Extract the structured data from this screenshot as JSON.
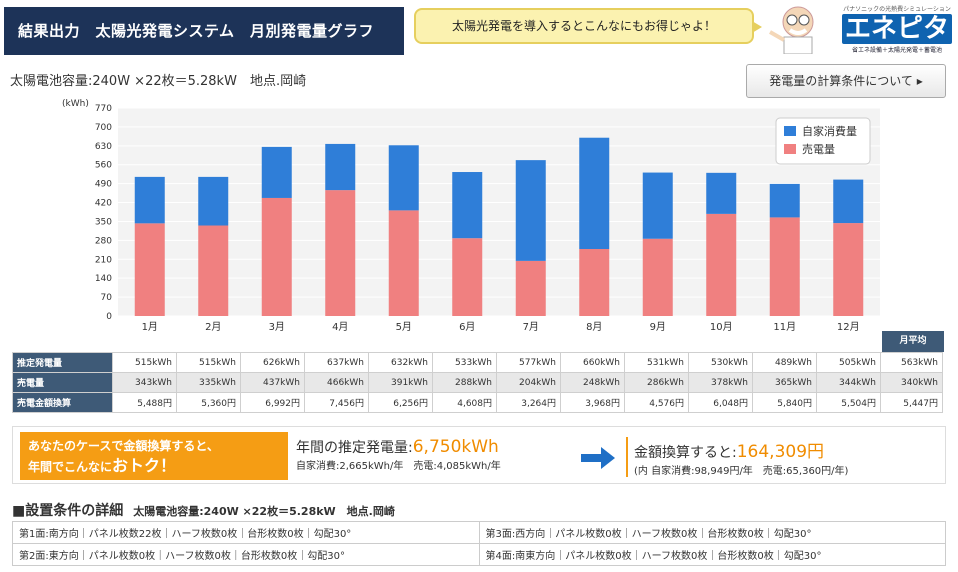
{
  "header": {
    "title": "結果出力　太陽光発電システム　月別発電量グラフ",
    "bubble": "太陽光発電を導入するとこんなにもお得じゃよ！",
    "logo_tagline": "パナソニックの光熱費シミュレーション",
    "logo_brand": "エネピタ",
    "logo_sub": "省エネ設備＋太陽光発電＋蓄電池"
  },
  "system_info": "太陽電池容量:240W ×22枚＝5.28kW　地点.岡崎",
  "calc_button": "発電量の計算条件について",
  "chart_data": {
    "type": "bar",
    "stacked": true,
    "ylabel": "(kWh)",
    "ylim": [
      0,
      770
    ],
    "yticks": [
      0,
      70,
      140,
      210,
      280,
      350,
      420,
      490,
      560,
      630,
      700,
      770
    ],
    "categories": [
      "1月",
      "2月",
      "3月",
      "4月",
      "5月",
      "6月",
      "7月",
      "8月",
      "9月",
      "10月",
      "11月",
      "12月"
    ],
    "series": [
      {
        "name": "売電量",
        "color": "#f08080",
        "values": [
          343,
          335,
          437,
          466,
          391,
          288,
          204,
          248,
          286,
          378,
          365,
          344
        ]
      },
      {
        "name": "自家消費量",
        "color": "#2f7ed8",
        "values": [
          172,
          180,
          189,
          171,
          241,
          245,
          373,
          412,
          245,
          152,
          124,
          161
        ]
      }
    ],
    "legend": "top-right",
    "grid": true
  },
  "table": {
    "avg_header": "月平均",
    "rows": [
      {
        "label": "推定発電量",
        "values": [
          "515kWh",
          "515kWh",
          "626kWh",
          "637kWh",
          "632kWh",
          "533kWh",
          "577kWh",
          "660kWh",
          "531kWh",
          "530kWh",
          "489kWh",
          "505kWh"
        ],
        "avg": "563kWh"
      },
      {
        "label": "売電量",
        "values": [
          "343kWh",
          "335kWh",
          "437kWh",
          "466kWh",
          "391kWh",
          "288kWh",
          "204kWh",
          "248kWh",
          "286kWh",
          "378kWh",
          "365kWh",
          "344kWh"
        ],
        "avg": "340kWh"
      },
      {
        "label": "売電金額換算",
        "values": [
          "5,488円",
          "5,360円",
          "6,992円",
          "7,456円",
          "6,256円",
          "4,608円",
          "3,264円",
          "3,968円",
          "4,576円",
          "6,048円",
          "5,840円",
          "5,504円"
        ],
        "avg": "5,447円"
      }
    ]
  },
  "promo": {
    "line1": "あなたのケースで金額換算すると、",
    "line2a": "年間でこんなに",
    "line2b": "おトク！",
    "est_label": "年間の推定発電量:",
    "est_value": "6,750kWh",
    "est_detail": "自家消費:2,665kWh/年　売電:4,085kWh/年",
    "conv_label": "金額換算すると:",
    "conv_value": "164,309円",
    "conv_detail": "(内 自家消費:98,949円/年　売電:65,360円/年)"
  },
  "conditions": {
    "title": "■設置条件の詳細",
    "subtitle": "太陽電池容量:240W ×22枚＝5.28kW　地点.岡崎",
    "faces": [
      "第1面:南方向｜パネル枚数22枚｜ハーフ枚数0枚｜台形枚数0枚｜勾配30°",
      "第3面:西方向｜パネル枚数0枚｜ハーフ枚数0枚｜台形枚数0枚｜勾配30°",
      "第2面:東方向｜パネル枚数0枚｜ハーフ枚数0枚｜台形枚数0枚｜勾配30°",
      "第4面:南東方向｜パネル枚数0枚｜ハーフ枚数0枚｜台形枚数0枚｜勾配30°"
    ]
  }
}
